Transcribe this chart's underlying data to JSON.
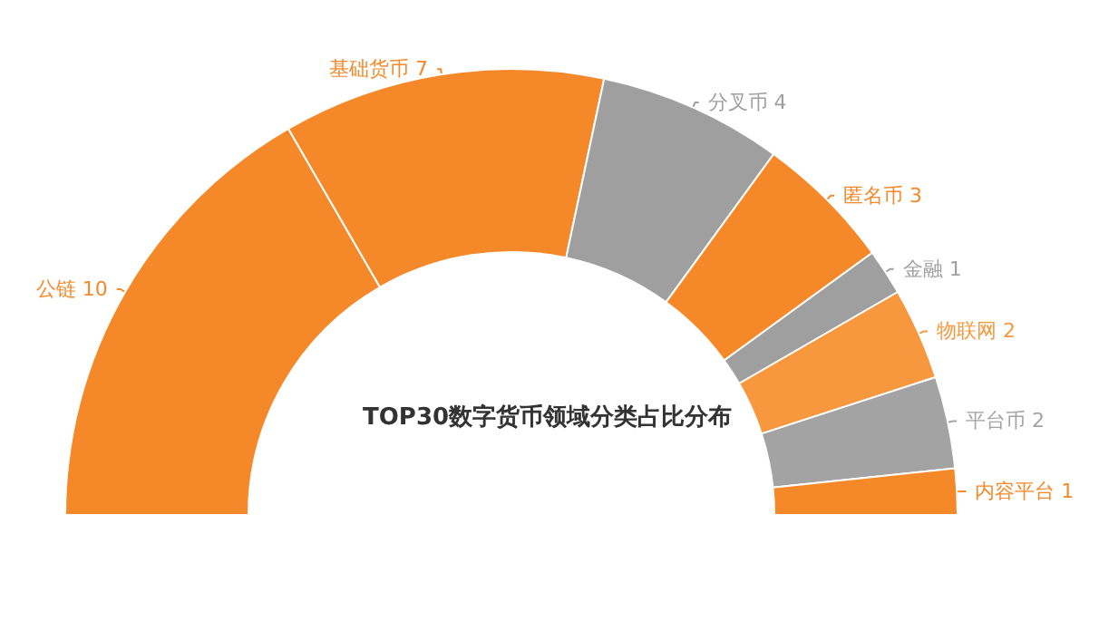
{
  "chart_data": {
    "type": "donut",
    "title": "TOP30数字货币领域分类占比分布",
    "categories": [
      "公链",
      "基础货币",
      "分叉币",
      "匿名币",
      "金融",
      "物联网",
      "平台币",
      "内容平台"
    ],
    "values": [
      10,
      7,
      4,
      3,
      1,
      2,
      2,
      1
    ],
    "colors": [
      "#f5892a",
      "#f5892a",
      "#9f9f9f",
      "#f5892a",
      "#9f9f9f",
      "#f7983f",
      "#a3a3a3",
      "#f5892a"
    ],
    "data_labels": true,
    "legend": false
  }
}
